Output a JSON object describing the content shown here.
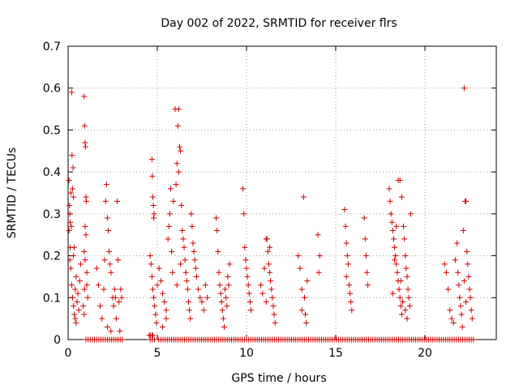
{
  "chart_data": {
    "type": "scatter",
    "title": "Day 002 of 2022, SRMTID for receiver flrs",
    "xlabel": "GPS time / hours",
    "ylabel": "SRMTID / TECUs",
    "xlim": [
      0,
      24
    ],
    "ylim": [
      0,
      0.7
    ],
    "xticks": [
      0,
      5,
      10,
      15,
      20
    ],
    "xtick_labels": [
      "0",
      "5",
      "10",
      "15",
      "20"
    ],
    "yticks": [
      0,
      0.1,
      0.2,
      0.3,
      0.4,
      0.5,
      0.6,
      0.7
    ],
    "ytick_labels": [
      "0",
      "0.1",
      "0.2",
      "0.3",
      "0.4",
      "0.5",
      "0.6",
      "0.7"
    ],
    "grid": true,
    "marker": "+",
    "marker_color": "#cc0000",
    "series": [
      {
        "name": "SRMTID",
        "points": [
          [
            0.05,
            0.38
          ],
          [
            0.08,
            0.32
          ],
          [
            0.1,
            0.3
          ],
          [
            0.12,
            0.28
          ],
          [
            0.15,
            0.35
          ],
          [
            0.18,
            0.27
          ],
          [
            0.2,
            0.59
          ],
          [
            0.22,
            0.44
          ],
          [
            0.25,
            0.36
          ],
          [
            0.28,
            0.41
          ],
          [
            0.3,
            0.34
          ],
          [
            0.1,
            0.19
          ],
          [
            0.15,
            0.17
          ],
          [
            0.2,
            0.13
          ],
          [
            0.25,
            0.1
          ],
          [
            0.3,
            0.08
          ],
          [
            0.35,
            0.06
          ],
          [
            0.4,
            0.12
          ],
          [
            0.45,
            0.15
          ],
          [
            0.5,
            0.09
          ],
          [
            0.55,
            0.11
          ],
          [
            0.6,
            0.07
          ],
          [
            0.65,
            0.14
          ],
          [
            0.7,
            0.18
          ],
          [
            0.3,
            0.2
          ],
          [
            0.35,
            0.22
          ],
          [
            0.4,
            0.05
          ],
          [
            0.45,
            0.04
          ],
          [
            0.05,
            0.26
          ],
          [
            0.12,
            0.22
          ],
          [
            0.9,
            0.58
          ],
          [
            0.92,
            0.51
          ],
          [
            0.95,
            0.47
          ],
          [
            0.98,
            0.46
          ],
          [
            1.0,
            0.34
          ],
          [
            1.02,
            0.33
          ],
          [
            0.95,
            0.27
          ],
          [
            1.0,
            0.25
          ],
          [
            0.9,
            0.21
          ],
          [
            0.95,
            0.19
          ],
          [
            1.05,
            0.16
          ],
          [
            1.1,
            0.1
          ],
          [
            0.85,
            0.08
          ],
          [
            0.9,
            0.06
          ],
          [
            0.92,
            0.12
          ],
          [
            1.05,
            0.13
          ],
          [
            1.6,
            0.17
          ],
          [
            1.7,
            0.13
          ],
          [
            1.8,
            0.08
          ],
          [
            1.9,
            0.05
          ],
          [
            2.0,
            0.12
          ],
          [
            2.05,
            0.19
          ],
          [
            2.1,
            0.33
          ],
          [
            2.15,
            0.37
          ],
          [
            2.2,
            0.29
          ],
          [
            2.25,
            0.26
          ],
          [
            2.3,
            0.21
          ],
          [
            2.35,
            0.18
          ],
          [
            2.4,
            0.16
          ],
          [
            2.5,
            0.1
          ],
          [
            2.55,
            0.08
          ],
          [
            2.6,
            0.12
          ],
          [
            2.65,
            0.1
          ],
          [
            2.7,
            0.05
          ],
          [
            2.75,
            0.33
          ],
          [
            2.8,
            0.19
          ],
          [
            2.85,
            0.09
          ],
          [
            2.9,
            0.02
          ],
          [
            2.95,
            0.12
          ],
          [
            3.0,
            0.1
          ],
          [
            2.2,
            0.03
          ],
          [
            2.4,
            0.02
          ],
          [
            4.7,
            0.43
          ],
          [
            4.72,
            0.39
          ],
          [
            4.75,
            0.34
          ],
          [
            4.78,
            0.32
          ],
          [
            4.8,
            0.29
          ],
          [
            4.82,
            0.3
          ],
          [
            4.6,
            0.2
          ],
          [
            4.65,
            0.18
          ],
          [
            4.7,
            0.15
          ],
          [
            4.75,
            0.12
          ],
          [
            4.8,
            0.1
          ],
          [
            4.85,
            0.08
          ],
          [
            4.9,
            0.06
          ],
          [
            4.95,
            0.04
          ],
          [
            5.0,
            0.13
          ],
          [
            5.1,
            0.17
          ],
          [
            5.2,
            0.14
          ],
          [
            5.3,
            0.11
          ],
          [
            5.4,
            0.09
          ],
          [
            5.5,
            0.07
          ],
          [
            5.6,
            0.24
          ],
          [
            5.65,
            0.27
          ],
          [
            5.7,
            0.3
          ],
          [
            5.75,
            0.36
          ],
          [
            5.8,
            0.21
          ],
          [
            5.85,
            0.16
          ],
          [
            5.9,
            0.33
          ],
          [
            5.5,
            0.05
          ],
          [
            5.3,
            0.03
          ],
          [
            6.0,
            0.55
          ],
          [
            6.2,
            0.55
          ],
          [
            6.15,
            0.51
          ],
          [
            6.25,
            0.46
          ],
          [
            6.3,
            0.45
          ],
          [
            6.05,
            0.37
          ],
          [
            6.1,
            0.42
          ],
          [
            6.2,
            0.4
          ],
          [
            6.35,
            0.32
          ],
          [
            6.4,
            0.26
          ],
          [
            6.45,
            0.24
          ],
          [
            6.5,
            0.22
          ],
          [
            6.55,
            0.19
          ],
          [
            6.6,
            0.16
          ],
          [
            6.65,
            0.14
          ],
          [
            6.7,
            0.12
          ],
          [
            6.75,
            0.09
          ],
          [
            6.8,
            0.07
          ],
          [
            6.85,
            0.05
          ],
          [
            6.9,
            0.3
          ],
          [
            6.95,
            0.27
          ],
          [
            7.0,
            0.23
          ],
          [
            7.05,
            0.21
          ],
          [
            7.1,
            0.19
          ],
          [
            7.15,
            0.17
          ],
          [
            7.2,
            0.15
          ],
          [
            7.3,
            0.12
          ],
          [
            7.4,
            0.1
          ],
          [
            7.5,
            0.09
          ],
          [
            7.6,
            0.07
          ],
          [
            7.7,
            0.13
          ],
          [
            7.8,
            0.1
          ],
          [
            6.3,
            0.18
          ],
          [
            6.1,
            0.13
          ],
          [
            8.3,
            0.29
          ],
          [
            8.35,
            0.26
          ],
          [
            8.4,
            0.21
          ],
          [
            8.45,
            0.16
          ],
          [
            8.5,
            0.13
          ],
          [
            8.55,
            0.11
          ],
          [
            8.6,
            0.09
          ],
          [
            8.65,
            0.07
          ],
          [
            8.7,
            0.05
          ],
          [
            8.75,
            0.03
          ],
          [
            8.8,
            0.12
          ],
          [
            8.85,
            0.1
          ],
          [
            8.9,
            0.08
          ],
          [
            8.95,
            0.15
          ],
          [
            9.0,
            0.13
          ],
          [
            9.05,
            0.18
          ],
          [
            9.8,
            0.36
          ],
          [
            9.85,
            0.3
          ],
          [
            9.9,
            0.22
          ],
          [
            9.95,
            0.19
          ],
          [
            10.0,
            0.17
          ],
          [
            10.05,
            0.15
          ],
          [
            10.1,
            0.13
          ],
          [
            10.15,
            0.11
          ],
          [
            10.2,
            0.09
          ],
          [
            10.25,
            0.07
          ],
          [
            10.8,
            0.13
          ],
          [
            10.9,
            0.11
          ],
          [
            11.0,
            0.17
          ],
          [
            11.1,
            0.24
          ],
          [
            11.15,
            0.24
          ],
          [
            11.2,
            0.21
          ],
          [
            11.25,
            0.18
          ],
          [
            11.3,
            0.16
          ],
          [
            11.35,
            0.14
          ],
          [
            11.4,
            0.12
          ],
          [
            11.45,
            0.1
          ],
          [
            11.5,
            0.08
          ],
          [
            11.55,
            0.06
          ],
          [
            11.6,
            0.04
          ],
          [
            11.3,
            0.22
          ],
          [
            11.1,
            0.09
          ],
          [
            12.9,
            0.2
          ],
          [
            13.0,
            0.17
          ],
          [
            13.1,
            0.12
          ],
          [
            13.2,
            0.34
          ],
          [
            13.25,
            0.1
          ],
          [
            13.3,
            0.06
          ],
          [
            13.35,
            0.04
          ],
          [
            13.4,
            0.14
          ],
          [
            13.1,
            0.07
          ],
          [
            14.0,
            0.25
          ],
          [
            14.05,
            0.16
          ],
          [
            14.1,
            0.2
          ],
          [
            15.5,
            0.31
          ],
          [
            15.55,
            0.27
          ],
          [
            15.6,
            0.23
          ],
          [
            15.65,
            0.2
          ],
          [
            15.7,
            0.18
          ],
          [
            15.75,
            0.13
          ],
          [
            15.8,
            0.11
          ],
          [
            15.85,
            0.09
          ],
          [
            15.9,
            0.07
          ],
          [
            15.6,
            0.15
          ],
          [
            16.6,
            0.29
          ],
          [
            16.65,
            0.24
          ],
          [
            16.7,
            0.2
          ],
          [
            16.75,
            0.16
          ],
          [
            16.8,
            0.13
          ],
          [
            18.0,
            0.36
          ],
          [
            18.05,
            0.33
          ],
          [
            18.1,
            0.3
          ],
          [
            18.15,
            0.28
          ],
          [
            18.2,
            0.26
          ],
          [
            18.25,
            0.24
          ],
          [
            18.3,
            0.22
          ],
          [
            18.35,
            0.2
          ],
          [
            18.4,
            0.18
          ],
          [
            18.45,
            0.16
          ],
          [
            18.5,
            0.14
          ],
          [
            18.55,
            0.12
          ],
          [
            18.6,
            0.1
          ],
          [
            18.65,
            0.08
          ],
          [
            18.7,
            0.06
          ],
          [
            18.5,
            0.38
          ],
          [
            18.6,
            0.38
          ],
          [
            18.7,
            0.34
          ],
          [
            18.8,
            0.27
          ],
          [
            18.85,
            0.24
          ],
          [
            18.9,
            0.2
          ],
          [
            18.95,
            0.17
          ],
          [
            19.0,
            0.15
          ],
          [
            19.05,
            0.12
          ],
          [
            19.1,
            0.1
          ],
          [
            19.15,
            0.08
          ],
          [
            19.2,
            0.3
          ],
          [
            18.4,
            0.27
          ],
          [
            18.3,
            0.19
          ],
          [
            18.2,
            0.11
          ],
          [
            18.9,
            0.07
          ],
          [
            19.0,
            0.05
          ],
          [
            18.75,
            0.09
          ],
          [
            18.65,
            0.14
          ],
          [
            21.1,
            0.18
          ],
          [
            21.2,
            0.16
          ],
          [
            21.3,
            0.12
          ],
          [
            21.4,
            0.07
          ],
          [
            21.5,
            0.05
          ],
          [
            21.6,
            0.04
          ],
          [
            21.7,
            0.19
          ],
          [
            21.8,
            0.23
          ],
          [
            21.85,
            0.16
          ],
          [
            21.9,
            0.13
          ],
          [
            21.95,
            0.1
          ],
          [
            22.0,
            0.08
          ],
          [
            22.05,
            0.06
          ],
          [
            22.1,
            0.03
          ],
          [
            22.15,
            0.26
          ],
          [
            22.2,
            0.6
          ],
          [
            22.25,
            0.33
          ],
          [
            22.3,
            0.33
          ],
          [
            22.35,
            0.21
          ],
          [
            22.4,
            0.18
          ],
          [
            22.45,
            0.15
          ],
          [
            22.5,
            0.12
          ],
          [
            22.55,
            0.1
          ],
          [
            22.6,
            0.07
          ],
          [
            22.65,
            0.05
          ],
          [
            22.2,
            0.14
          ],
          [
            22.3,
            0.09
          ]
        ]
      },
      {
        "name": "zero-baseline",
        "x_start": 1.0,
        "x_end": 22.8,
        "step": 0.12,
        "y": 0,
        "gaps": [
          [
            3.1,
            4.5
          ],
          [
            4.9,
            5.0
          ]
        ]
      }
    ]
  }
}
